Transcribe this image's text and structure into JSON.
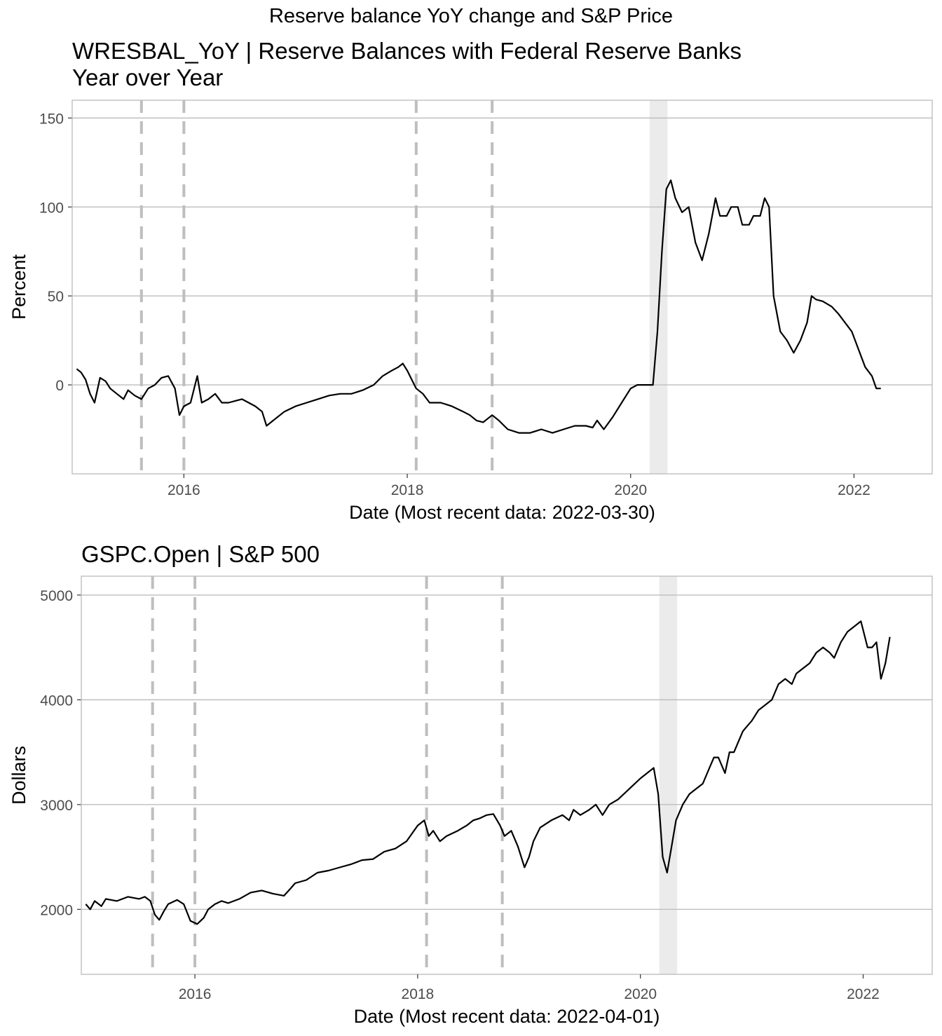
{
  "figure": {
    "title": "Reserve balance YoY change and S&P Price"
  },
  "colors": {
    "line": "#000000",
    "grid": "#bebebe",
    "panel_border": "#bebebe",
    "event_dash": "#bebebe",
    "recession_shade": "#ebebeb",
    "tick_text": "#4d4d4d"
  },
  "chart_data": [
    {
      "type": "line",
      "title": "WRESBAL_YoY | Reserve Balances with Federal Reserve Banks",
      "subtitle": "Year over Year",
      "xlabel": "Date (Most recent data: 2022-03-30)",
      "ylabel": "Percent",
      "xlim": [
        2015.0,
        2022.7
      ],
      "ylim": [
        -50,
        160
      ],
      "yticks": [
        0,
        50,
        100,
        150
      ],
      "xticks": [
        2016,
        2018,
        2020,
        2022
      ],
      "grid": true,
      "legend": "none",
      "event_lines": [
        2015.62,
        2016.0,
        2018.08,
        2018.76
      ],
      "recession_band": [
        2020.17,
        2020.33
      ],
      "series": [
        {
          "x": [
            2015.04,
            2015.08,
            2015.12,
            2015.16,
            2015.2,
            2015.25,
            2015.3,
            2015.34,
            2015.4,
            2015.46,
            2015.5,
            2015.56,
            2015.62,
            2015.68,
            2015.74,
            2015.8,
            2015.86,
            2015.92,
            2015.96,
            2016.0,
            2016.06,
            2016.12,
            2016.16,
            2016.22,
            2016.28,
            2016.34,
            2016.4,
            2016.46,
            2016.52,
            2016.58,
            2016.64,
            2016.7,
            2016.74,
            2016.8,
            2016.9,
            2017.0,
            2017.1,
            2017.2,
            2017.3,
            2017.4,
            2017.5,
            2017.6,
            2017.7,
            2017.78,
            2017.86,
            2017.92,
            2017.96,
            2018.0,
            2018.04,
            2018.08,
            2018.14,
            2018.2,
            2018.3,
            2018.4,
            2018.5,
            2018.56,
            2018.62,
            2018.68,
            2018.72,
            2018.76,
            2018.82,
            2018.9,
            2019.0,
            2019.1,
            2019.2,
            2019.3,
            2019.4,
            2019.5,
            2019.6,
            2019.66,
            2019.7,
            2019.76,
            2019.84,
            2019.92,
            2020.0,
            2020.06,
            2020.12,
            2020.16,
            2020.2,
            2020.24,
            2020.28,
            2020.32,
            2020.36,
            2020.4,
            2020.46,
            2020.52,
            2020.58,
            2020.64,
            2020.7,
            2020.76,
            2020.8,
            2020.86,
            2020.9,
            2020.96,
            2021.0,
            2021.06,
            2021.1,
            2021.16,
            2021.2,
            2021.24,
            2021.28,
            2021.34,
            2021.4,
            2021.46,
            2021.52,
            2021.58,
            2021.62,
            2021.66,
            2021.72,
            2021.8,
            2021.86,
            2021.92,
            2021.98,
            2022.04,
            2022.1,
            2022.16,
            2022.2,
            2022.24
          ],
          "y": [
            9,
            7,
            3,
            -5,
            -10,
            4,
            2,
            -2,
            -5,
            -8,
            -3,
            -6,
            -8,
            -2,
            0,
            4,
            5,
            -2,
            -17,
            -12,
            -10,
            5,
            -10,
            -8,
            -5,
            -10,
            -10,
            -9,
            -8,
            -10,
            -12,
            -15,
            -23,
            -20,
            -15,
            -12,
            -10,
            -8,
            -6,
            -5,
            -5,
            -3,
            0,
            5,
            8,
            10,
            12,
            8,
            3,
            -2,
            -5,
            -10,
            -10,
            -12,
            -15,
            -17,
            -20,
            -21,
            -19,
            -17,
            -20,
            -25,
            -27,
            -27,
            -25,
            -27,
            -25,
            -23,
            -23,
            -24,
            -20,
            -25,
            -18,
            -10,
            -2,
            0,
            0,
            0,
            0,
            30,
            75,
            110,
            115,
            105,
            97,
            100,
            80,
            70,
            85,
            105,
            95,
            95,
            100,
            100,
            90,
            90,
            95,
            95,
            105,
            100,
            50,
            30,
            25,
            18,
            25,
            35,
            50,
            48,
            47,
            44,
            40,
            35,
            30,
            20,
            10,
            5,
            -2,
            -2
          ]
        }
      ]
    },
    {
      "type": "line",
      "title": "GSPC.Open | S&P 500",
      "subtitle": "",
      "xlabel": "Date (Most recent data: 2022-04-01)",
      "ylabel": "Dollars",
      "xlim": [
        2014.98,
        2022.62
      ],
      "ylim": [
        1380,
        5180
      ],
      "yticks": [
        2000,
        3000,
        4000,
        5000
      ],
      "xticks": [
        2016,
        2018,
        2020,
        2022
      ],
      "grid": true,
      "legend": "none",
      "event_lines": [
        2015.62,
        2016.0,
        2018.08,
        2018.76
      ],
      "recession_band": [
        2020.17,
        2020.33
      ],
      "series": [
        {
          "x": [
            2015.02,
            2015.06,
            2015.1,
            2015.16,
            2015.2,
            2015.3,
            2015.4,
            2015.5,
            2015.55,
            2015.6,
            2015.64,
            2015.68,
            2015.72,
            2015.76,
            2015.84,
            2015.9,
            2015.96,
            2016.02,
            2016.08,
            2016.12,
            2016.18,
            2016.24,
            2016.3,
            2016.4,
            2016.5,
            2016.6,
            2016.7,
            2016.8,
            2016.86,
            2016.9,
            2017.0,
            2017.1,
            2017.2,
            2017.3,
            2017.4,
            2017.5,
            2017.6,
            2017.7,
            2017.8,
            2017.9,
            2018.0,
            2018.06,
            2018.1,
            2018.14,
            2018.2,
            2018.26,
            2018.3,
            2018.36,
            2018.44,
            2018.5,
            2018.56,
            2018.62,
            2018.68,
            2018.74,
            2018.78,
            2018.84,
            2018.9,
            2018.96,
            2019.0,
            2019.04,
            2019.1,
            2019.2,
            2019.3,
            2019.36,
            2019.4,
            2019.46,
            2019.54,
            2019.6,
            2019.66,
            2019.72,
            2019.8,
            2019.9,
            2020.0,
            2020.06,
            2020.12,
            2020.16,
            2020.2,
            2020.24,
            2020.28,
            2020.32,
            2020.38,
            2020.44,
            2020.5,
            2020.56,
            2020.62,
            2020.66,
            2020.7,
            2020.76,
            2020.8,
            2020.84,
            2020.88,
            2020.92,
            2020.96,
            2021.0,
            2021.06,
            2021.12,
            2021.18,
            2021.24,
            2021.3,
            2021.36,
            2021.4,
            2021.46,
            2021.52,
            2021.58,
            2021.64,
            2021.7,
            2021.74,
            2021.8,
            2021.86,
            2021.92,
            2021.98,
            2022.04,
            2022.08,
            2022.12,
            2022.16,
            2022.2,
            2022.24
          ],
          "y": [
            2050,
            2000,
            2080,
            2030,
            2100,
            2080,
            2120,
            2100,
            2120,
            2080,
            1950,
            1900,
            1980,
            2050,
            2090,
            2050,
            1890,
            1860,
            1920,
            2000,
            2050,
            2080,
            2060,
            2100,
            2160,
            2180,
            2150,
            2130,
            2200,
            2250,
            2280,
            2350,
            2370,
            2400,
            2430,
            2470,
            2480,
            2550,
            2580,
            2650,
            2800,
            2850,
            2700,
            2750,
            2650,
            2700,
            2720,
            2750,
            2800,
            2850,
            2870,
            2900,
            2910,
            2800,
            2700,
            2750,
            2600,
            2400,
            2500,
            2650,
            2780,
            2850,
            2900,
            2850,
            2950,
            2900,
            2950,
            3000,
            2900,
            3000,
            3050,
            3150,
            3250,
            3300,
            3350,
            3100,
            2500,
            2350,
            2600,
            2850,
            3000,
            3100,
            3150,
            3200,
            3350,
            3450,
            3450,
            3300,
            3500,
            3500,
            3600,
            3700,
            3750,
            3800,
            3900,
            3950,
            4000,
            4150,
            4200,
            4150,
            4250,
            4300,
            4350,
            4450,
            4500,
            4450,
            4400,
            4550,
            4650,
            4700,
            4750,
            4500,
            4500,
            4550,
            4200,
            4350,
            4600
          ]
        }
      ]
    }
  ]
}
